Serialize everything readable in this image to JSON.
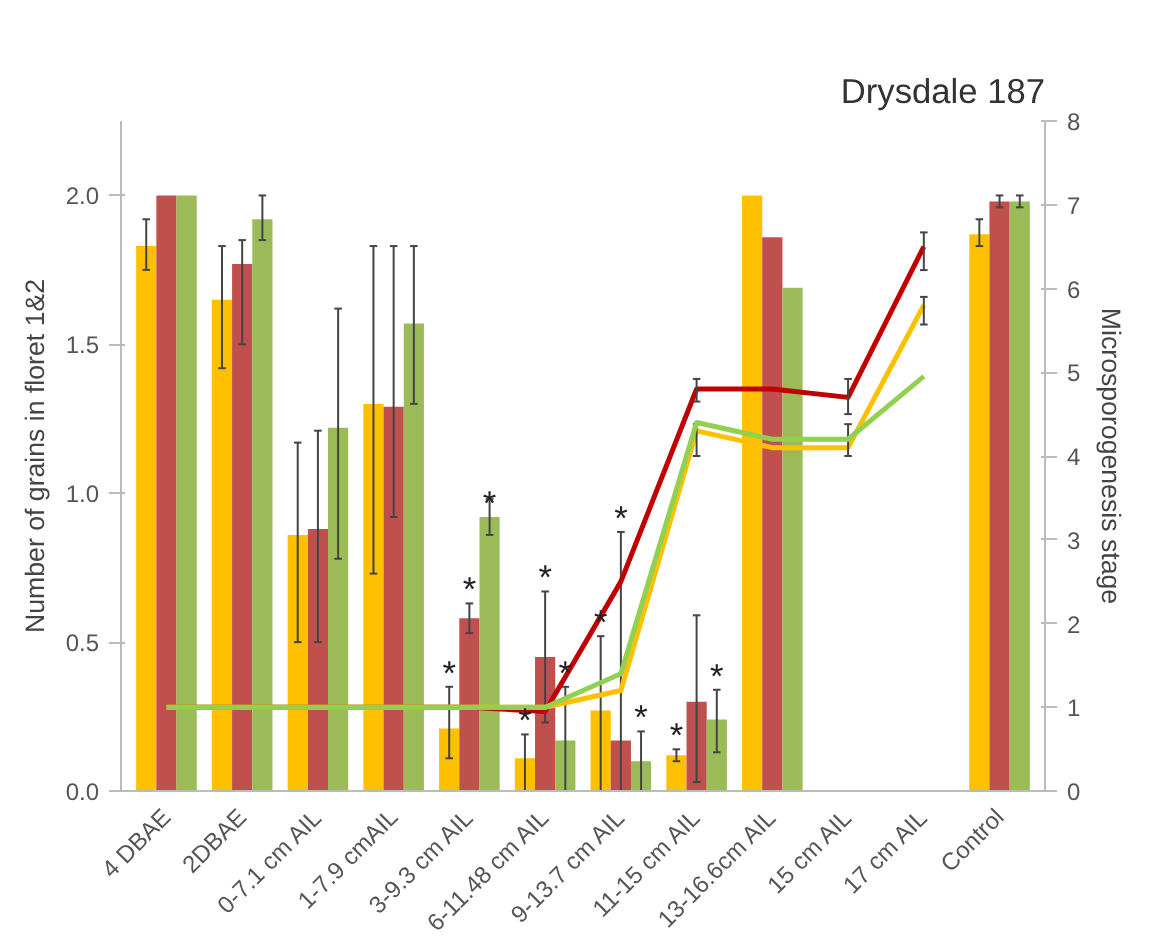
{
  "chart_data": {
    "type": "bar",
    "title": "Drysdale 187",
    "ylabel": "Number of grains in floret 1&2",
    "y2label": "Microsporogenesis stage",
    "categories": [
      "4 DBAE",
      "2DBAE",
      "0-7.1 cm AIL",
      "1-7.9 cmAIL",
      "3-9.3 cm AIL",
      "6-11.48 cm AIL",
      "9-13.7 cm AIL",
      "11-15 cm AIL",
      "13-16.6cm AIL",
      "15 cm AIL",
      "17 cm AIL",
      "Control"
    ],
    "ylim": [
      0,
      2.25
    ],
    "yticks": [
      {
        "value": 0,
        "label": "0.0"
      },
      {
        "value": 0.5,
        "label": "0.5"
      },
      {
        "value": 1,
        "label": "1.0"
      },
      {
        "value": 1.5,
        "label": "1.5"
      },
      {
        "value": 2,
        "label": "2.0"
      }
    ],
    "y2lim": [
      0,
      8
    ],
    "y2ticks": [
      0,
      1,
      2,
      3,
      4,
      5,
      6,
      7,
      8
    ],
    "grid": false,
    "series": [
      {
        "color": "#ffc000",
        "values": [
          1.83,
          1.65,
          0.86,
          1.3,
          0.21,
          0.11,
          0.27,
          0.12,
          2.0,
          null,
          null,
          1.87
        ],
        "errors": [
          [
            1.75,
            1.92
          ],
          [
            1.42,
            1.83
          ],
          [
            0.5,
            1.17
          ],
          [
            0.73,
            1.83
          ],
          [
            0.11,
            0.35
          ],
          [
            0,
            0.19
          ],
          [
            0,
            0.52
          ],
          [
            0.1,
            0.14
          ],
          null,
          null,
          null,
          [
            1.83,
            1.92
          ]
        ]
      },
      {
        "color": "#c0504d",
        "values": [
          2.0,
          1.77,
          0.88,
          1.29,
          0.58,
          0.45,
          0.17,
          0.3,
          1.86,
          null,
          null,
          1.98
        ],
        "errors": [
          null,
          [
            1.5,
            1.85
          ],
          [
            0.5,
            1.21
          ],
          [
            0.92,
            1.83
          ],
          [
            0.53,
            0.63
          ],
          [
            0.23,
            0.67
          ],
          [
            0,
            0.87
          ],
          [
            0.03,
            0.59
          ],
          null,
          null,
          null,
          [
            1.96,
            2.0
          ]
        ]
      },
      {
        "color": "#9bbb59",
        "values": [
          2.0,
          1.92,
          1.22,
          1.57,
          0.92,
          0.17,
          0.1,
          0.24,
          1.69,
          null,
          null,
          1.98
        ],
        "errors": [
          null,
          [
            1.85,
            2.0
          ],
          [
            0.78,
            1.62
          ],
          [
            1.3,
            1.83
          ],
          [
            0.86,
            0.98
          ],
          [
            0,
            0.35
          ],
          [
            0,
            0.2
          ],
          [
            0.13,
            0.34
          ],
          null,
          null,
          null,
          [
            1.96,
            2.0
          ]
        ]
      },
      {
        "type": "line",
        "axis": "y2",
        "color": "#c00000",
        "values": [
          1,
          1,
          1,
          1,
          1,
          0.95,
          2.5,
          4.8,
          4.8,
          4.7,
          6.5,
          null
        ],
        "errors": [
          null,
          null,
          null,
          null,
          null,
          null,
          null,
          [
            4.65,
            4.92
          ],
          null,
          [
            4.5,
            4.92
          ],
          [
            6.22,
            6.67
          ],
          null
        ]
      },
      {
        "type": "line",
        "axis": "y2",
        "color": "#ffc000",
        "values": [
          1,
          1,
          1,
          1,
          1,
          1,
          1.2,
          4.3,
          4.1,
          4.1,
          5.8,
          null
        ],
        "errors": [
          null,
          null,
          null,
          null,
          null,
          null,
          null,
          [
            4.0,
            4.38
          ],
          null,
          [
            4.0,
            4.38
          ],
          [
            5.57,
            5.9
          ],
          null
        ]
      },
      {
        "type": "line",
        "axis": "y2",
        "color": "#92d050",
        "values": [
          1,
          1,
          1,
          1,
          1,
          1,
          1.4,
          4.4,
          4.2,
          4.2,
          4.95,
          null
        ]
      }
    ],
    "annotations": [
      {
        "text": "*",
        "x": "3-9.3 cm AIL",
        "y": 0.35
      },
      {
        "text": "*",
        "x": "3-9.3 cm AIL",
        "y": 0.63
      },
      {
        "text": "*",
        "x": "3-9.3 cm AIL",
        "y": 0.92
      },
      {
        "text": "*",
        "x": "6-11.48 cm AIL",
        "y": 0.19
      },
      {
        "text": "*",
        "x": "6-11.48 cm AIL",
        "y": 0.67
      },
      {
        "text": "*",
        "x": "6-11.48 cm AIL",
        "y": 0.35
      },
      {
        "text": "*",
        "x": "9-13.7 cm AIL",
        "y": 0.52
      },
      {
        "text": "*",
        "x": "9-13.7 cm AIL",
        "y": 0.87
      },
      {
        "text": "*",
        "x": "9-13.7 cm AIL",
        "y": 0.2
      },
      {
        "text": "*",
        "x": "11-15 cm AIL",
        "y": 0.14
      },
      {
        "text": "*",
        "x": "11-15 cm AIL",
        "y": 0.34
      }
    ]
  }
}
